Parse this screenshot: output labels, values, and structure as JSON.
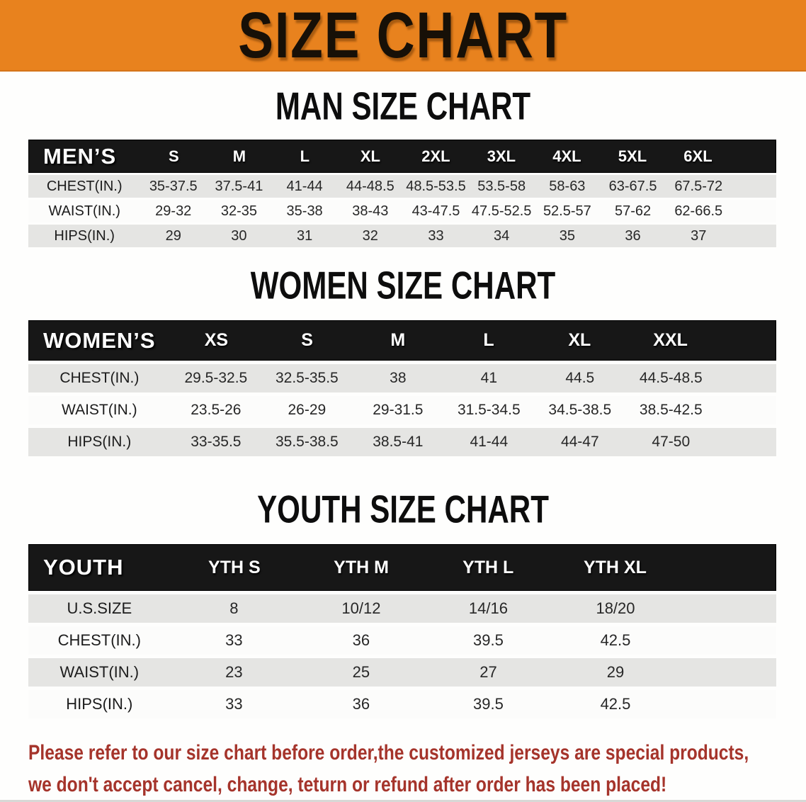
{
  "banner": {
    "title": "SIZE CHART"
  },
  "sections": [
    {
      "id": "men",
      "heading": "MAN SIZE CHART",
      "table": {
        "header_label": "MEN’S",
        "columns": [
          "S",
          "M",
          "L",
          "XL",
          "2XL",
          "3XL",
          "4XL",
          "5XL",
          "6XL"
        ],
        "rows": [
          {
            "label": "CHEST(IN.)",
            "values": [
              "35-37.5",
              "37.5-41",
              "41-44",
              "44-48.5",
              "48.5-53.5",
              "53.5-58",
              "58-63",
              "63-67.5",
              "67.5-72"
            ]
          },
          {
            "label": "WAIST(IN.)",
            "values": [
              "29-32",
              "32-35",
              "35-38",
              "38-43",
              "43-47.5",
              "47.5-52.5",
              "52.5-57",
              "57-62",
              "62-66.5"
            ]
          },
          {
            "label": "HIPS(IN.)",
            "values": [
              "29",
              "30",
              "31",
              "32",
              "33",
              "34",
              "35",
              "36",
              "37"
            ]
          }
        ]
      }
    },
    {
      "id": "women",
      "heading": "WOMEN SIZE CHART",
      "table": {
        "header_label": "WOMEN’S",
        "columns": [
          "XS",
          "S",
          "M",
          "L",
          "XL",
          "XXL"
        ],
        "rows": [
          {
            "label": "CHEST(IN.)",
            "values": [
              "29.5-32.5",
              "32.5-35.5",
              "38",
              "41",
              "44.5",
              "44.5-48.5"
            ]
          },
          {
            "label": "WAIST(IN.)",
            "values": [
              "23.5-26",
              "26-29",
              "29-31.5",
              "31.5-34.5",
              "34.5-38.5",
              "38.5-42.5"
            ]
          },
          {
            "label": "HIPS(IN.)",
            "values": [
              "33-35.5",
              "35.5-38.5",
              "38.5-41",
              "41-44",
              "44-47",
              "47-50"
            ]
          }
        ]
      }
    },
    {
      "id": "youth",
      "heading": "YOUTH SIZE CHART",
      "table": {
        "header_label": "YOUTH",
        "columns": [
          "YTH S",
          "YTH M",
          "YTH L",
          "YTH XL"
        ],
        "rows": [
          {
            "label": "U.S.SIZE",
            "values": [
              "8",
              "10/12",
              "14/16",
              "18/20"
            ]
          },
          {
            "label": "CHEST(IN.)",
            "values": [
              "33",
              "36",
              "39.5",
              "42.5"
            ]
          },
          {
            "label": "WAIST(IN.)",
            "values": [
              "23",
              "25",
              "27",
              "29"
            ]
          },
          {
            "label": "HIPS(IN.)",
            "values": [
              "33",
              "36",
              "39.5",
              "42.5"
            ]
          }
        ]
      }
    }
  ],
  "disclaimer": {
    "line1": "Please refer to our size chart before order,the customized jerseys are special products,",
    "line2": "we don't accept cancel, change, teturn or refund after order has been placed!"
  },
  "colors": {
    "banner_orange": "#E8821E",
    "table_header_black": "#171717",
    "row_gray": "#E5E5E3",
    "row_white": "#FCFCFB",
    "disclaimer_red": "#A5342B",
    "heading_black": "#0D0D0D"
  }
}
